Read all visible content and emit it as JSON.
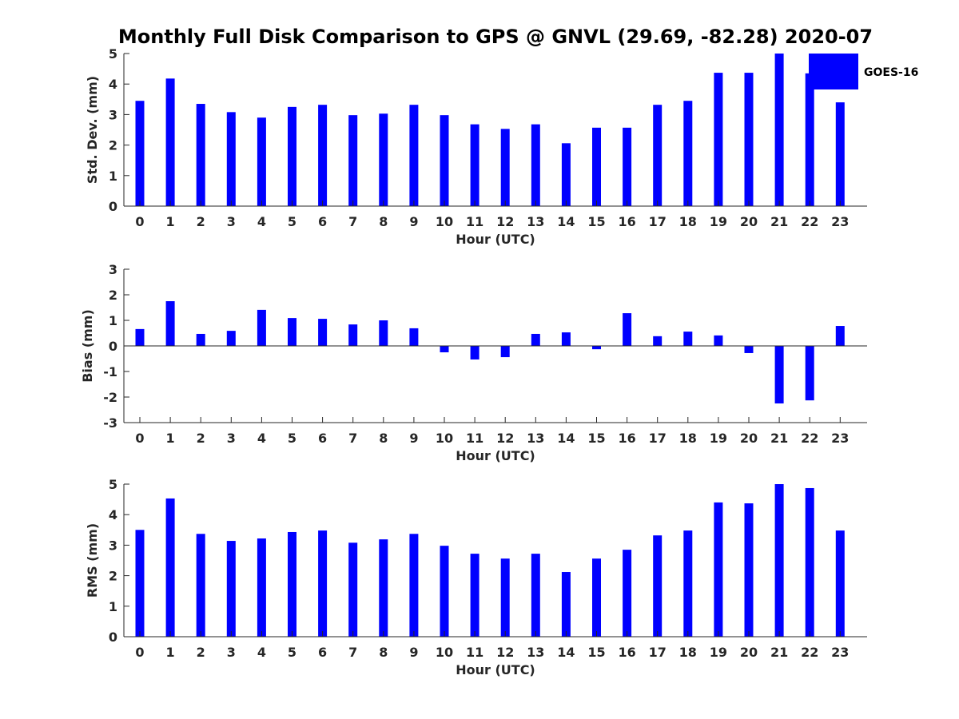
{
  "title": "Monthly Full Disk Comparison to GPS @ GNVL (29.69, -82.28) 2020-07",
  "legend": {
    "label": "GOES-16",
    "placement": "top-right",
    "color": "#0000ff"
  },
  "bar_color": "#0000ff",
  "chart_data": [
    {
      "type": "bar",
      "xlabel": "Hour (UTC)",
      "ylabel": "Std. Dev. (mm)",
      "ylim": [
        0,
        5
      ],
      "yticks": [
        0,
        1,
        2,
        3,
        4,
        5
      ],
      "categories": [
        "0",
        "1",
        "2",
        "3",
        "4",
        "5",
        "6",
        "7",
        "8",
        "9",
        "10",
        "11",
        "12",
        "13",
        "14",
        "15",
        "16",
        "17",
        "18",
        "19",
        "20",
        "21",
        "22",
        "23"
      ],
      "series": [
        {
          "name": "GOES-16",
          "values": [
            3.45,
            4.18,
            3.35,
            3.08,
            2.9,
            3.25,
            3.32,
            2.98,
            3.03,
            3.32,
            2.98,
            2.68,
            2.53,
            2.68,
            2.06,
            2.57,
            2.57,
            3.32,
            3.45,
            4.37,
            4.37,
            5.0,
            4.35,
            3.4
          ]
        }
      ]
    },
    {
      "type": "bar",
      "xlabel": "Hour (UTC)",
      "ylabel": "Bias (mm)",
      "ylim": [
        -3,
        3
      ],
      "yticks": [
        -3,
        -2,
        -1,
        0,
        1,
        2,
        3
      ],
      "categories": [
        "0",
        "1",
        "2",
        "3",
        "4",
        "5",
        "6",
        "7",
        "8",
        "9",
        "10",
        "11",
        "12",
        "13",
        "14",
        "15",
        "16",
        "17",
        "18",
        "19",
        "20",
        "21",
        "22",
        "23"
      ],
      "series": [
        {
          "name": "GOES-16",
          "values": [
            0.66,
            1.75,
            0.47,
            0.59,
            1.41,
            1.09,
            1.06,
            0.84,
            1.0,
            0.69,
            -0.25,
            -0.53,
            -0.44,
            0.47,
            0.53,
            -0.13,
            1.28,
            0.38,
            0.56,
            0.41,
            -0.28,
            -2.25,
            -2.13,
            0.78
          ]
        }
      ]
    },
    {
      "type": "bar",
      "xlabel": "Hour (UTC)",
      "ylabel": "RMS (mm)",
      "ylim": [
        0,
        5
      ],
      "yticks": [
        0,
        1,
        2,
        3,
        4,
        5
      ],
      "categories": [
        "0",
        "1",
        "2",
        "3",
        "4",
        "5",
        "6",
        "7",
        "8",
        "9",
        "10",
        "11",
        "12",
        "13",
        "14",
        "15",
        "16",
        "17",
        "18",
        "19",
        "20",
        "21",
        "22",
        "23"
      ],
      "series": [
        {
          "name": "GOES-16",
          "values": [
            3.5,
            4.53,
            3.37,
            3.14,
            3.22,
            3.43,
            3.48,
            3.08,
            3.19,
            3.37,
            2.98,
            2.72,
            2.56,
            2.72,
            2.12,
            2.56,
            2.85,
            3.32,
            3.48,
            4.4,
            4.37,
            5.0,
            4.87,
            3.48
          ]
        }
      ]
    }
  ]
}
